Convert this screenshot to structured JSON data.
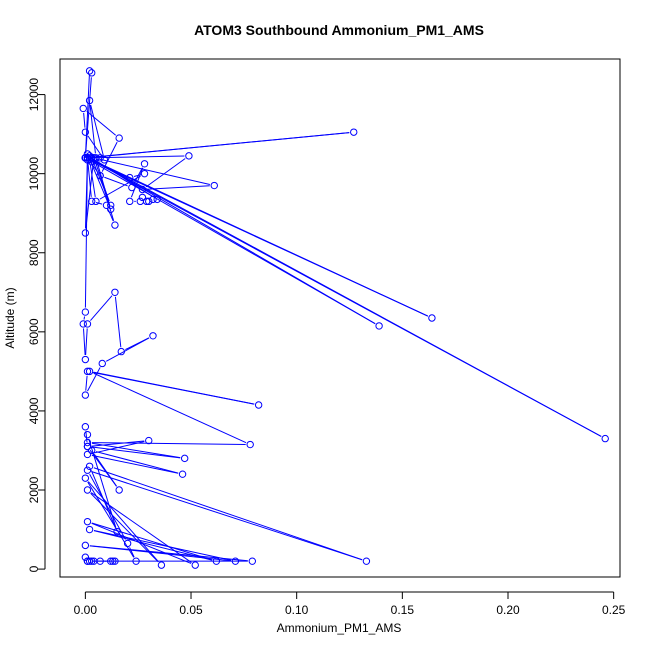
{
  "chart_data": {
    "type": "line",
    "title": "ATOM3 Southbound Ammonium_PM1_AMS",
    "xlabel": "Ammonium_PM1_AMS",
    "ylabel": "Altitude (m)",
    "xlim": [
      -0.012,
      0.253
    ],
    "ylim": [
      -200,
      12900
    ],
    "xticks": [
      0.0,
      0.05,
      0.1,
      0.15,
      0.2,
      0.25
    ],
    "xtick_labels": [
      "0.00",
      "0.05",
      "0.10",
      "0.15",
      "0.20",
      "0.25"
    ],
    "yticks": [
      0,
      2000,
      4000,
      6000,
      8000,
      10000,
      12000
    ],
    "ytick_labels": [
      "0",
      "2000",
      "4000",
      "6000",
      "8000",
      "10000",
      "12000"
    ],
    "grid": false,
    "legend": "none",
    "series_color": "#0000ff",
    "marker": "open-circle",
    "series": [
      {
        "x": [
          0.0,
          0.002,
          0.003,
          0.0,
          0.001,
          0.012,
          0.005,
          0.002,
          0.009,
          0.0,
          -0.001,
          0.016,
          0.007,
          0.001,
          0.002,
          0.005,
          0.028,
          0.021,
          0.0,
          0.003,
          0.0,
          0.002,
          0.0,
          0.001,
          0.003,
          0.012,
          0.004,
          0.0,
          0.001,
          0.003,
          0.01,
          0.014,
          0.007,
          0.022,
          0.028,
          0.021,
          0.026,
          0.027,
          0.029,
          0.03,
          0.032,
          0.034,
          0.003,
          0.007,
          0.001,
          0.049,
          0.027,
          0.061,
          0.004,
          0.0,
          0.127,
          0.001,
          0.001,
          0.164,
          0.0,
          0.139,
          0.002,
          0.246,
          0.001,
          0.0,
          -0.001,
          0.0,
          0.001,
          0.014,
          0.017,
          0.032,
          0.008,
          0.0,
          0.001,
          0.082,
          0.002,
          0.078,
          0.001,
          0.047,
          0.001,
          0.03,
          0.001,
          0.046,
          0.003,
          0.016,
          0.001,
          0.0,
          0.001,
          0.015,
          0.002,
          0.133,
          0.001,
          0.02,
          0.024,
          0.0,
          0.036,
          0.001,
          0.052,
          0.001,
          0.062,
          0.002,
          0.071,
          0.0,
          0.079,
          0.001,
          0.004,
          0.007,
          0.012,
          0.013,
          0.014,
          0.001,
          0.002,
          0.0,
          0.003
        ],
        "y": [
          10400,
          12600,
          12550,
          10400,
          10500,
          9100,
          10400,
          11850,
          10350,
          11050,
          11650,
          10900,
          9950,
          10400,
          10350,
          9300,
          10000,
          9900,
          10400,
          10300,
          10400,
          10450,
          10400,
          10350,
          10400,
          9200,
          10400,
          8500,
          10400,
          9300,
          9200,
          8700,
          9950,
          9650,
          10250,
          9300,
          9300,
          9400,
          9300,
          9300,
          9350,
          9350,
          10400,
          10400,
          10400,
          10450,
          9600,
          9700,
          10400,
          10400,
          11050,
          10400,
          10400,
          6350,
          10400,
          6150,
          10400,
          3300,
          10400,
          6500,
          6200,
          5300,
          6200,
          7000,
          5500,
          5900,
          5200,
          4400,
          5000,
          4150,
          5000,
          3150,
          3200,
          2800,
          3100,
          3250,
          2900,
          2400,
          3000,
          2000,
          3100,
          3600,
          3400,
          950,
          2600,
          200,
          2500,
          650,
          200,
          2300,
          100,
          2000,
          100,
          1200,
          200,
          1000,
          200,
          600,
          200,
          200,
          200,
          200,
          200,
          200,
          200,
          200,
          200,
          300,
          200
        ]
      }
    ]
  }
}
